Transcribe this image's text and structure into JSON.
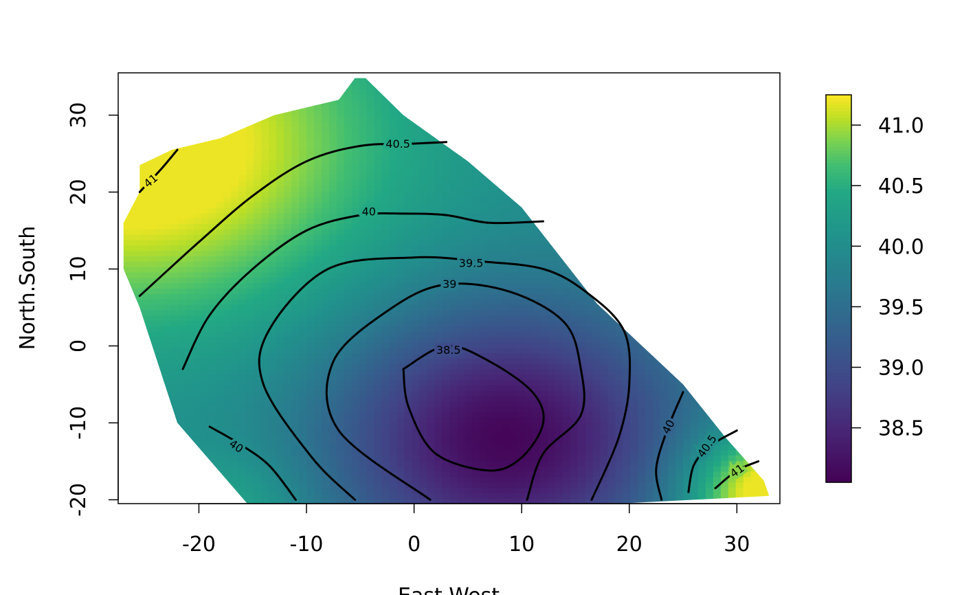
{
  "chart_data": {
    "type": "heatmap",
    "title": "",
    "xlabel": "East.West",
    "ylabel": "North.South",
    "xlim": [
      -27.5,
      34
    ],
    "ylim": [
      -20.5,
      35.5
    ],
    "x_ticks": [
      -20,
      -10,
      0,
      10,
      20,
      30
    ],
    "y_ticks": [
      -20,
      -10,
      0,
      10,
      20,
      30
    ],
    "grid": false,
    "colorscale": "viridis",
    "colorbar": {
      "min": 38.05,
      "max": 41.25,
      "ticks": [
        38.5,
        39.0,
        39.5,
        40.0,
        40.5,
        41.0
      ],
      "tick_labels": [
        "38.5",
        "39.0",
        "39.5",
        "40.0",
        "40.5",
        "41.0"
      ]
    },
    "surface": {
      "base": 40.0,
      "min_value": 38.1,
      "min_location": [
        8.5,
        -12.0
      ],
      "max_value": 41.2
    },
    "region": [
      [
        -25.5,
        23.5
      ],
      [
        -22.5,
        25.5
      ],
      [
        -18,
        27
      ],
      [
        -13,
        30
      ],
      [
        -7,
        32
      ],
      [
        -5.5,
        34.8
      ],
      [
        -4.5,
        34.8
      ],
      [
        -1,
        30
      ],
      [
        5,
        24
      ],
      [
        10,
        18
      ],
      [
        17,
        5.5
      ],
      [
        25,
        -5
      ],
      [
        29,
        -12
      ],
      [
        32.5,
        -17.5
      ],
      [
        33,
        -19.5
      ],
      [
        19,
        -20.5
      ],
      [
        -15.5,
        -20.5
      ],
      [
        -22,
        -10
      ],
      [
        -25.5,
        5
      ],
      [
        -27,
        10
      ],
      [
        -27,
        16
      ],
      [
        -25.5,
        20
      ]
    ],
    "contours": [
      {
        "level": "41",
        "points": [
          [
            -25.5,
            20
          ],
          [
            -23.5,
            23
          ],
          [
            -22,
            25.5
          ]
        ],
        "label_at": [
          -24.5,
          21.5
        ],
        "label_angle": -40
      },
      {
        "level": "41",
        "points": [
          [
            28,
            -18.5
          ],
          [
            30,
            -16.2
          ],
          [
            32,
            -15
          ]
        ],
        "label_at": [
          30,
          -16.2
        ],
        "label_angle": -35
      },
      {
        "level": "40.5",
        "points": [
          [
            -25.5,
            6.5
          ],
          [
            -20,
            13.5
          ],
          [
            -15,
            19.5
          ],
          [
            -10,
            24
          ],
          [
            -5,
            26
          ],
          [
            0,
            26.3
          ],
          [
            3,
            26.5
          ]
        ],
        "label_at": [
          -1.5,
          26.3
        ],
        "label_angle": 0
      },
      {
        "level": "40.5",
        "points": [
          [
            25.5,
            -19
          ],
          [
            26,
            -15.5
          ],
          [
            27.5,
            -13
          ],
          [
            30,
            -11
          ]
        ],
        "label_at": [
          27.2,
          -13
        ],
        "label_angle": -55
      },
      {
        "level": "40",
        "points": [
          [
            -21.5,
            -3
          ],
          [
            -19,
            4
          ],
          [
            -15,
            10
          ],
          [
            -10,
            15
          ],
          [
            -5,
            17
          ],
          [
            -1,
            17.2
          ],
          [
            3,
            17
          ],
          [
            7,
            16
          ],
          [
            12,
            16.2
          ]
        ],
        "label_at": [
          -4.2,
          17.5
        ],
        "label_angle": 0
      },
      {
        "level": "40",
        "points": [
          [
            -19,
            -10.5
          ],
          [
            -16.5,
            -12.5
          ],
          [
            -13.5,
            -15.5
          ],
          [
            -11,
            -20
          ]
        ],
        "label_at": [
          -16.5,
          -13
        ],
        "label_angle": 35
      },
      {
        "level": "40",
        "points": [
          [
            23,
            -20
          ],
          [
            22.5,
            -16
          ],
          [
            23.5,
            -11
          ],
          [
            25,
            -6
          ]
        ],
        "label_at": [
          23.6,
          -10.5
        ],
        "label_angle": -62
      },
      {
        "level": "39.5",
        "points": [
          [
            -5.5,
            -20
          ],
          [
            -9.5,
            -14.5
          ],
          [
            -14,
            -5
          ],
          [
            -13.5,
            2
          ],
          [
            -8,
            10
          ],
          [
            0,
            11.5
          ],
          [
            6,
            11
          ],
          [
            12,
            10
          ],
          [
            16,
            7
          ],
          [
            19.5,
            2
          ],
          [
            20,
            -5
          ],
          [
            19,
            -12
          ],
          [
            16.5,
            -20
          ]
        ],
        "label_at": [
          5.3,
          10.8
        ],
        "label_angle": 0
      },
      {
        "level": "39",
        "points": [
          [
            1.5,
            -20
          ],
          [
            -7,
            -11
          ],
          [
            -7.5,
            -2
          ],
          [
            -2,
            5
          ],
          [
            3,
            8
          ],
          [
            9,
            7
          ],
          [
            14,
            3
          ],
          [
            15.5,
            -3
          ],
          [
            15.5,
            -9
          ],
          [
            12,
            -14
          ],
          [
            10.5,
            -20
          ]
        ],
        "label_at": [
          3.3,
          8.1
        ],
        "label_angle": 0
      },
      {
        "level": "38.5",
        "points": [
          [
            -1,
            -3
          ],
          [
            3,
            0
          ],
          [
            7,
            -2
          ],
          [
            11,
            -6
          ],
          [
            12,
            -10
          ],
          [
            10,
            -14.5
          ],
          [
            7,
            -16.2
          ],
          [
            2,
            -14
          ],
          [
            -0.5,
            -8
          ],
          [
            -1,
            -3
          ]
        ],
        "label_at": [
          3.2,
          -0.5
        ],
        "label_angle": 0
      }
    ]
  }
}
